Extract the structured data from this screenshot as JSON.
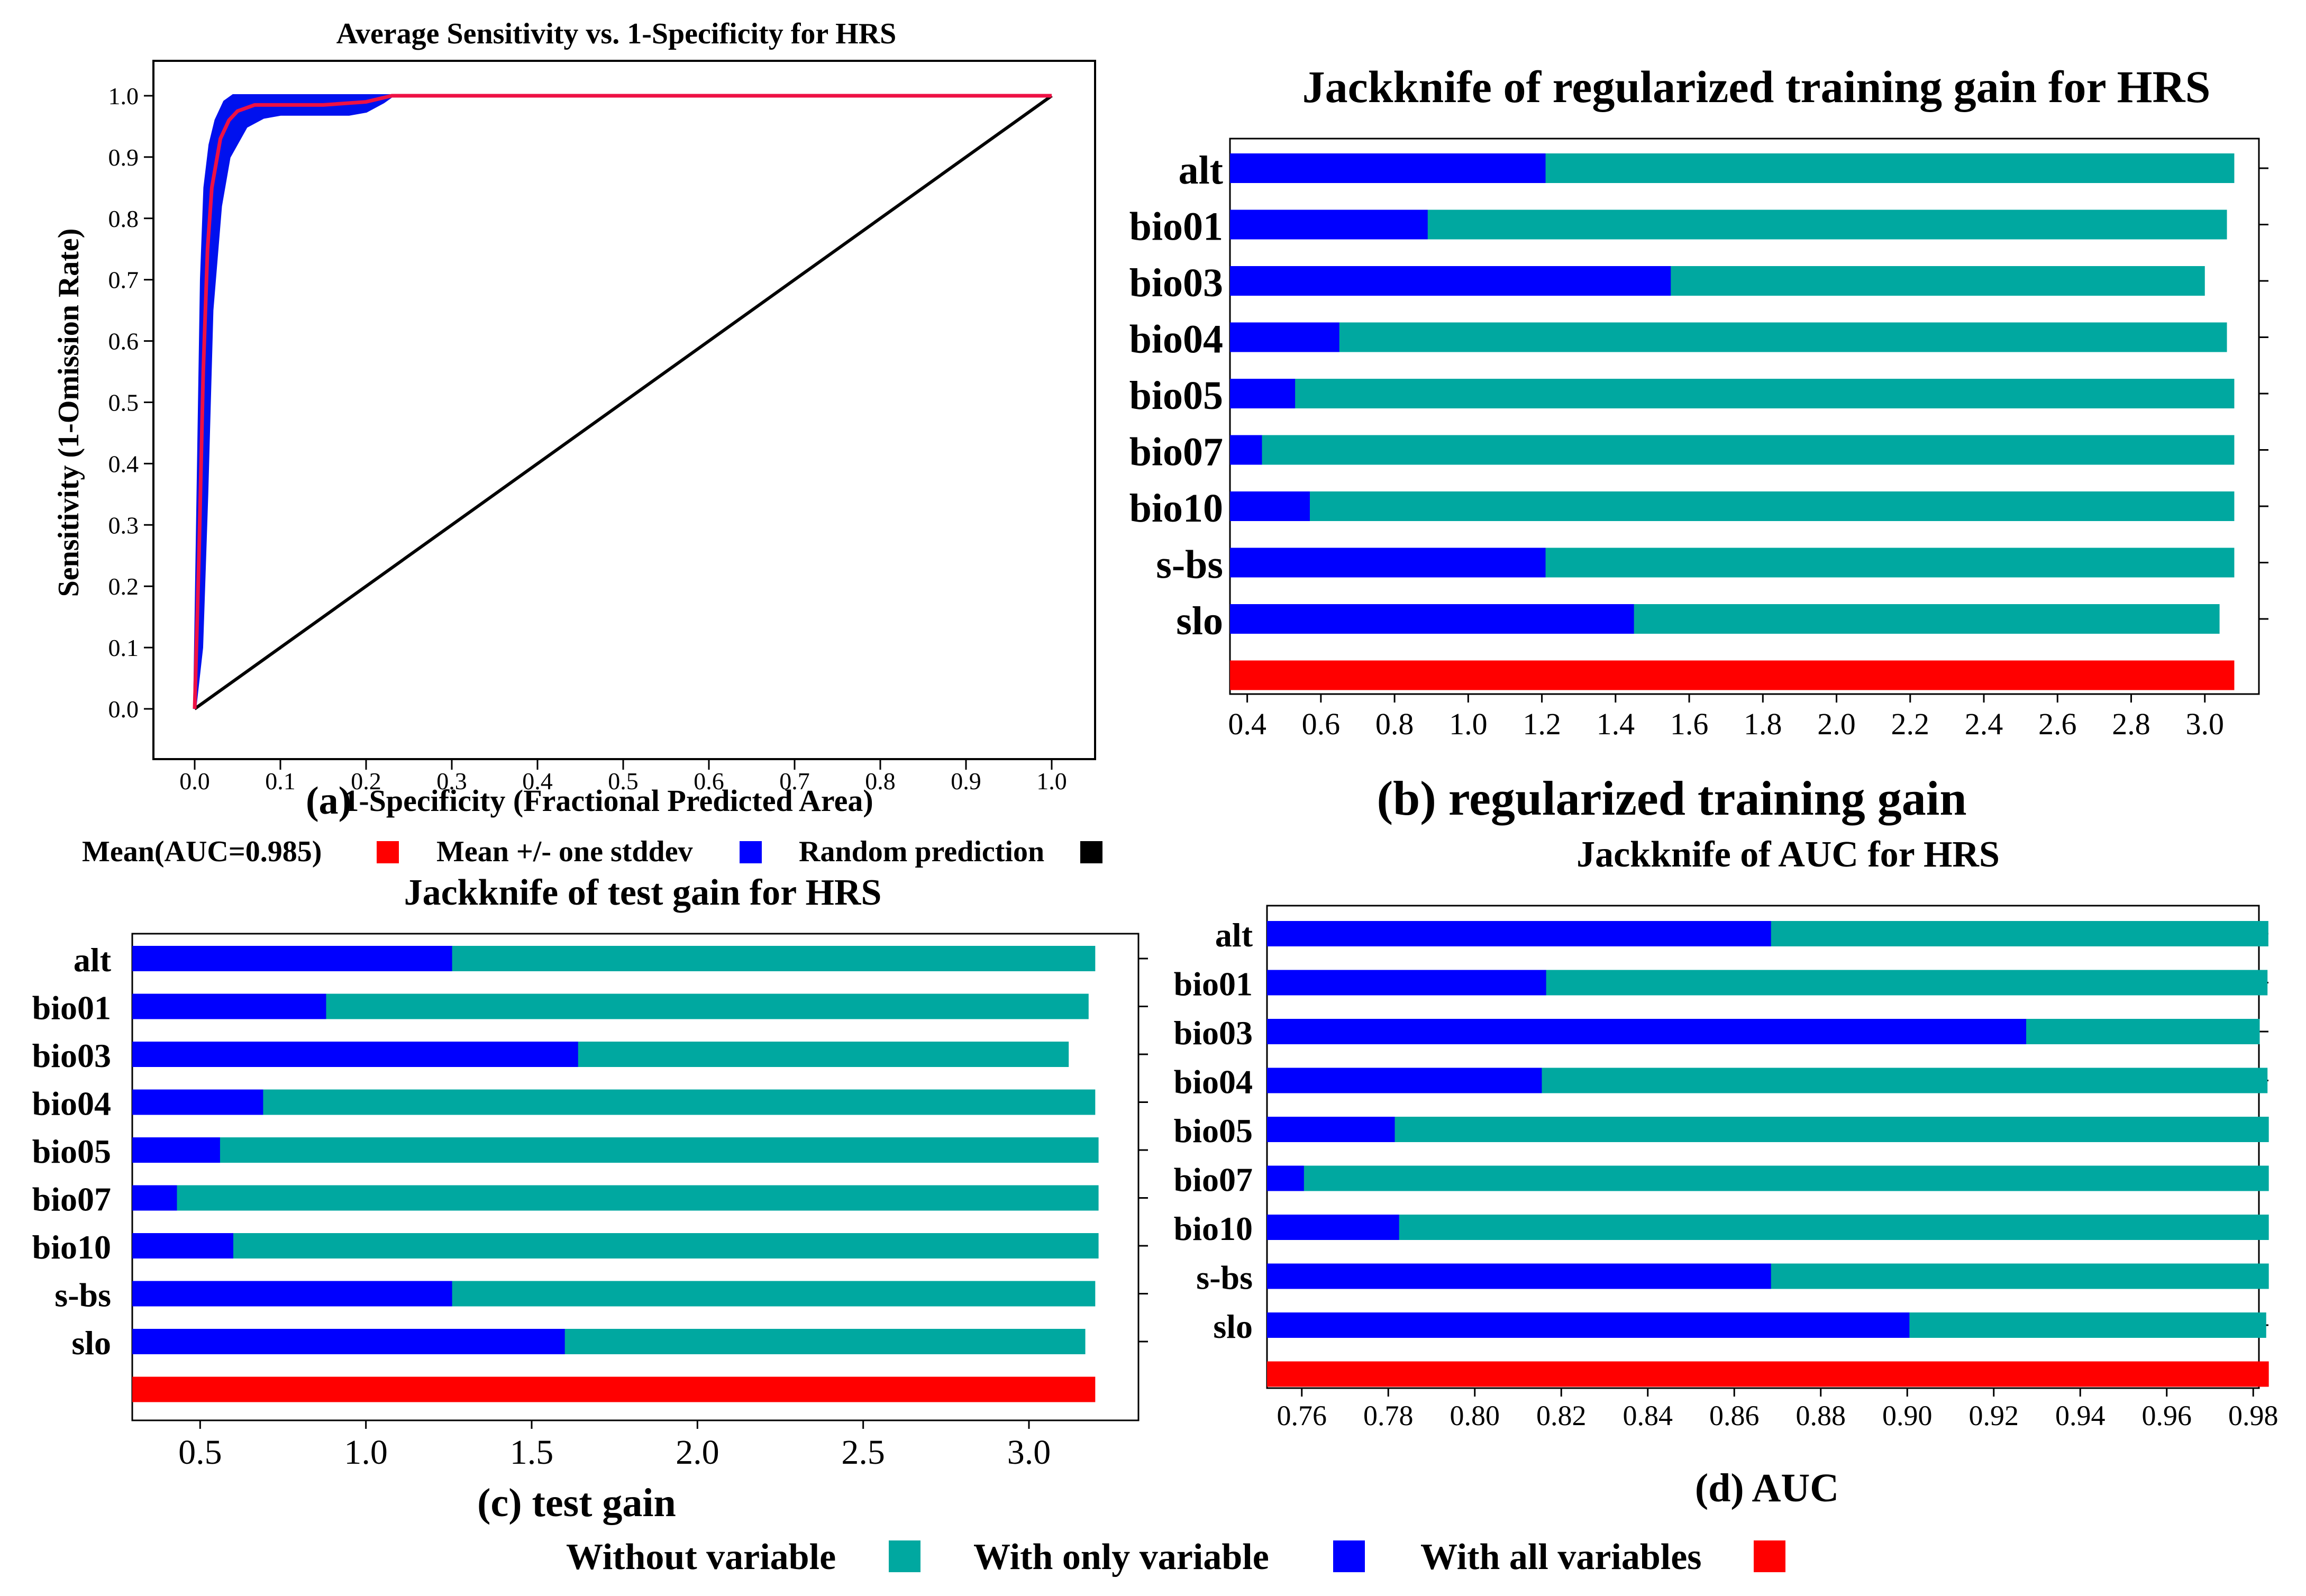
{
  "colors": {
    "without": "#00a8a0",
    "only": "#0000ff",
    "all": "#ff0000",
    "random": "#000000",
    "mean": "#ee1144",
    "band": "#0011ee"
  },
  "panel_a": {
    "caption": "(a)",
    "legend": {
      "mean": "Mean(AUC=0.985)",
      "stddev": "Mean +/- one stddev",
      "random": "Random prediction"
    }
  },
  "bottom_legend": {
    "without": "Without variable",
    "only": "With only variable",
    "all": "With all variables"
  },
  "chart_data": [
    {
      "id": "a",
      "type": "line",
      "title": "Average Sensitivity vs. 1-Specificity for HRS",
      "xlabel": "1-Specificity (Fractional Predicted Area)",
      "ylabel": "Sensitivity (1-Omission Rate)",
      "xlim": [
        0,
        1
      ],
      "ylim": [
        0,
        1
      ],
      "xticks": [
        0.0,
        0.1,
        0.2,
        0.3,
        0.4,
        0.5,
        0.6,
        0.7,
        0.8,
        0.9,
        1.0
      ],
      "yticks": [
        0.0,
        0.1,
        0.2,
        0.3,
        0.4,
        0.5,
        0.6,
        0.7,
        0.8,
        0.9,
        1.0
      ],
      "auc": 0.985,
      "series": [
        {
          "name": "Mean (AUC=0.985)",
          "x": [
            0,
            0.005,
            0.01,
            0.015,
            0.02,
            0.03,
            0.04,
            0.05,
            0.06,
            0.07,
            0.1,
            0.15,
            0.2,
            0.23,
            0.3,
            1.0
          ],
          "y": [
            0,
            0.25,
            0.55,
            0.75,
            0.85,
            0.93,
            0.96,
            0.975,
            0.98,
            0.985,
            0.985,
            0.985,
            0.99,
            1.0,
            1.0,
            1.0
          ]
        },
        {
          "name": "Mean +/- one stddev (upper)",
          "x": [
            0,
            0.004,
            0.008,
            0.012,
            0.018,
            0.025,
            0.035,
            0.045,
            0.05,
            0.1,
            1.0
          ],
          "y": [
            0,
            0.35,
            0.7,
            0.85,
            0.92,
            0.96,
            0.99,
            1.0,
            1.0,
            1.0,
            1.0
          ]
        },
        {
          "name": "Mean +/- one stddev (lower)",
          "x": [
            0,
            0.008,
            0.014,
            0.02,
            0.03,
            0.04,
            0.06,
            0.08,
            0.1,
            0.15,
            0.18,
            0.2,
            0.22,
            0.23,
            1.0
          ],
          "y": [
            0,
            0.1,
            0.35,
            0.65,
            0.82,
            0.9,
            0.95,
            0.965,
            0.97,
            0.97,
            0.97,
            0.975,
            0.99,
            1.0,
            1.0
          ]
        },
        {
          "name": "Random prediction",
          "x": [
            0,
            1
          ],
          "y": [
            0,
            1
          ]
        }
      ]
    },
    {
      "id": "b",
      "type": "bar",
      "title": "Jackknife of regularized training gain for HRS",
      "caption": "(b) regularized training gain",
      "xlim": [
        0.3,
        3.2
      ],
      "xticks": [
        0.4,
        0.6,
        0.8,
        1.0,
        1.2,
        1.4,
        1.6,
        1.8,
        2.0,
        2.2,
        2.4,
        2.6,
        2.8,
        3.0
      ],
      "xtick_labels": [
        "0.4",
        "0.6",
        "0.8",
        "1.0",
        "1.2",
        "1.4",
        "1.6",
        "1.8",
        "2.0",
        "2.2",
        "2.4",
        "2.6",
        "2.8",
        "3.0"
      ],
      "categories": [
        "alt",
        "bio01",
        "bio03",
        "bio04",
        "bio05",
        "bio07",
        "bio10",
        "s-bs",
        "slo"
      ],
      "series": [
        {
          "name": "Without variable",
          "values": [
            3.08,
            3.06,
            3.0,
            3.06,
            3.08,
            3.08,
            3.08,
            3.08,
            3.04
          ]
        },
        {
          "name": "With only variable",
          "values": [
            1.21,
            0.89,
            1.55,
            0.65,
            0.53,
            0.44,
            0.57,
            1.21,
            1.45
          ]
        }
      ],
      "all_variables": 3.08
    },
    {
      "id": "c",
      "type": "bar",
      "title": "Jackknife of test gain for HRS",
      "caption": "(c)  test gain",
      "xlim": [
        0.3,
        3.3
      ],
      "xticks": [
        0.5,
        1.0,
        1.5,
        2.0,
        2.5,
        3.0
      ],
      "xtick_labels": [
        "0.5",
        "1.0",
        "1.5",
        "2.0",
        "2.5",
        "3.0"
      ],
      "categories": [
        "alt",
        "bio01",
        "bio03",
        "bio04",
        "bio05",
        "bio07",
        "bio10",
        "s-bs",
        "slo"
      ],
      "series": [
        {
          "name": "Without variable",
          "values": [
            3.2,
            3.18,
            3.12,
            3.2,
            3.21,
            3.21,
            3.21,
            3.2,
            3.17
          ]
        },
        {
          "name": "With only variable",
          "values": [
            1.26,
            0.88,
            1.64,
            0.69,
            0.56,
            0.43,
            0.6,
            1.26,
            1.6
          ]
        }
      ],
      "all_variables": 3.2
    },
    {
      "id": "d",
      "type": "bar",
      "title": "Jackknife of AUC for HRS",
      "caption": "(d) AUC",
      "xlim": [
        0.75,
        0.99
      ],
      "xticks": [
        0.76,
        0.78,
        0.8,
        0.82,
        0.84,
        0.86,
        0.88,
        0.9,
        0.92,
        0.94,
        0.96,
        0.98
      ],
      "xtick_labels": [
        "0.76",
        "0.78",
        "0.80",
        "0.82",
        "0.84",
        "0.86",
        "0.88",
        "0.90",
        "0.92",
        "0.94",
        "0.96",
        "0.98"
      ],
      "categories": [
        "alt",
        "bio01",
        "bio03",
        "bio04",
        "bio05",
        "bio07",
        "bio10",
        "s-bs",
        "slo"
      ],
      "series": [
        {
          "name": "Without variable",
          "values": [
            0.9835,
            0.9833,
            0.9815,
            0.9833,
            0.9836,
            0.9836,
            0.9836,
            0.9836,
            0.983
          ]
        },
        {
          "name": "With only variable",
          "values": [
            0.8685,
            0.8165,
            0.9275,
            0.8155,
            0.7815,
            0.7605,
            0.7825,
            0.8685,
            0.9005
          ]
        }
      ],
      "all_variables": 0.9836
    }
  ]
}
